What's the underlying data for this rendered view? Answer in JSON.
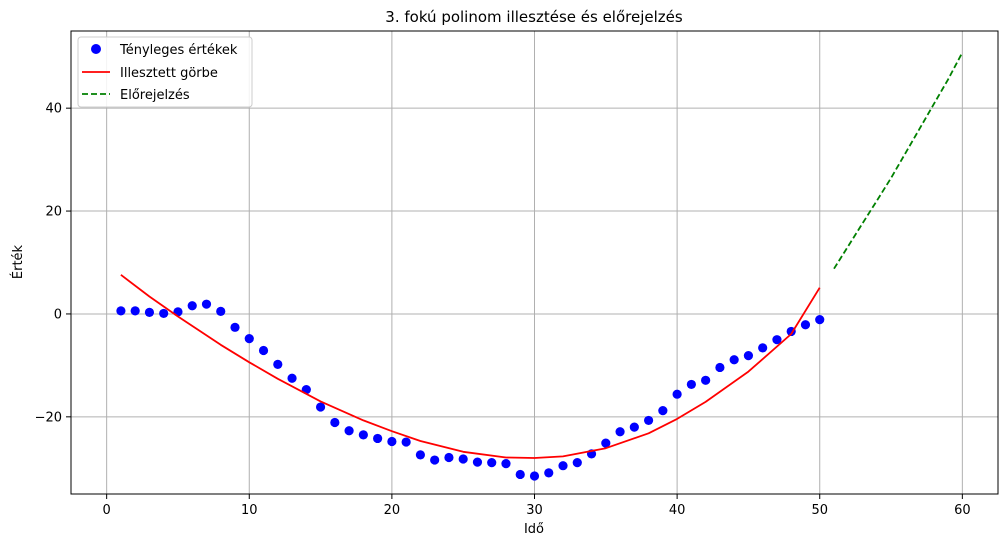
{
  "chart_data": {
    "type": "scatter",
    "title": "3. fokú polinom illesztése és előrejelzés",
    "xlabel": "Idő",
    "ylabel": "Érték",
    "xlim": [
      -2.5,
      62.5
    ],
    "ylim": [
      -35,
      55
    ],
    "grid": true,
    "legend_position": "top-left",
    "x_ticks": [
      0,
      10,
      20,
      30,
      40,
      50,
      60
    ],
    "y_ticks": [
      -20,
      0,
      20,
      40
    ],
    "y_tick_labels": [
      "−20",
      "0",
      "20",
      "40"
    ],
    "series": [
      {
        "name": "Tényleges értékek",
        "kind": "scatter",
        "color": "#0000ff",
        "x": [
          1,
          2,
          3,
          4,
          5,
          6,
          7,
          8,
          9,
          10,
          11,
          12,
          13,
          14,
          15,
          16,
          17,
          18,
          19,
          20,
          21,
          22,
          23,
          24,
          25,
          26,
          27,
          28,
          29,
          30,
          31,
          32,
          33,
          34,
          35,
          36,
          37,
          38,
          39,
          40,
          41,
          42,
          43,
          44,
          45,
          46,
          47,
          48,
          49,
          50
        ],
        "y": [
          0.6,
          0.6,
          0.3,
          0.1,
          0.4,
          1.6,
          1.9,
          0.5,
          -2.6,
          -4.8,
          -7.1,
          -9.8,
          -12.5,
          -14.7,
          -18.1,
          -21.1,
          -22.7,
          -23.5,
          -24.2,
          -24.8,
          -24.9,
          -27.4,
          -28.4,
          -27.9,
          -28.2,
          -28.8,
          -28.9,
          -29.1,
          -31.2,
          -31.5,
          -30.9,
          -29.5,
          -28.9,
          -27.2,
          -25.1,
          -22.9,
          -22.0,
          -20.7,
          -18.8,
          -15.6,
          -13.7,
          -12.9,
          -10.4,
          -8.9,
          -8.1,
          -6.6,
          -5.0,
          -3.4,
          -2.1,
          -1.1
        ]
      },
      {
        "name": "Illesztett görbe",
        "kind": "line",
        "color": "#ff0000",
        "x": [
          1,
          3,
          5,
          8,
          10,
          12,
          15,
          18,
          20,
          22,
          25,
          28,
          30,
          32,
          35,
          38,
          40,
          42,
          45,
          48,
          50
        ],
        "y": [
          7.6,
          3.4,
          -0.5,
          -6.0,
          -9.4,
          -12.6,
          -17.0,
          -20.7,
          -22.8,
          -24.7,
          -26.8,
          -27.9,
          -28.0,
          -27.7,
          -26.1,
          -23.2,
          -20.4,
          -17.1,
          -11.2,
          -3.9,
          5.1
        ]
      },
      {
        "name": "Előrejelzés",
        "kind": "line",
        "dash": true,
        "color": "#008000",
        "x": [
          51,
          52,
          53,
          54,
          55,
          56,
          57,
          58,
          59,
          60
        ],
        "y": [
          8.8,
          13.2,
          17.6,
          22.0,
          26.4,
          31.2,
          36.0,
          40.8,
          45.6,
          50.8
        ]
      }
    ]
  }
}
